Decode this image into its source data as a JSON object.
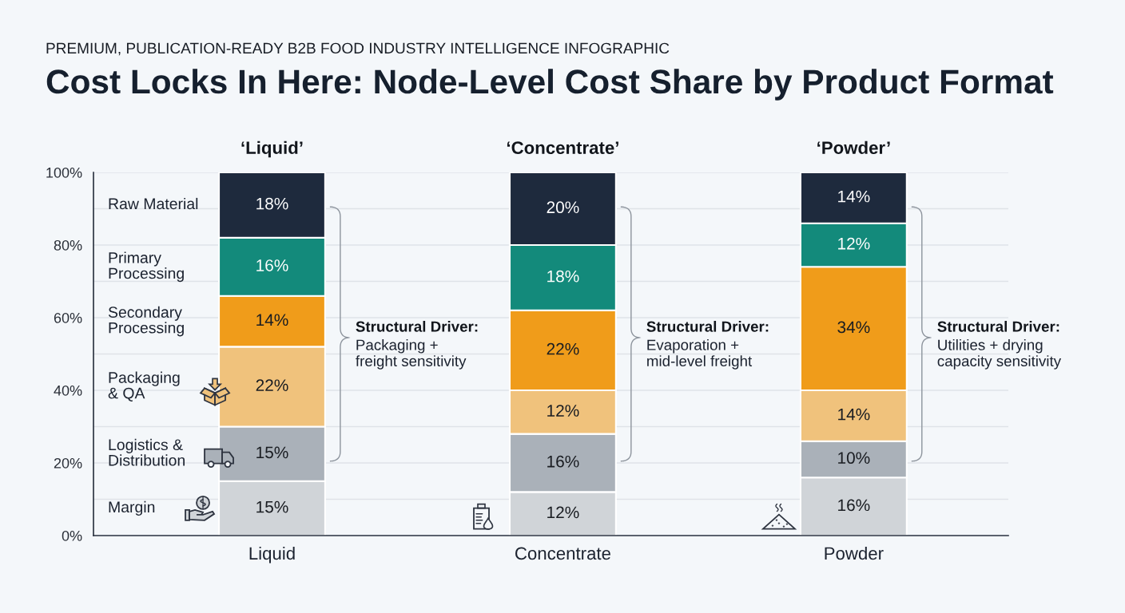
{
  "chart_data": {
    "type": "bar",
    "stacked": true,
    "subtitle": "PREMIUM, PUBLICATION-READY B2B FOOD INDUSTRY INTELLIGENCE INFOGRAPHIC",
    "title": "Cost Locks In Here: Node-Level Cost Share by Product Format",
    "categories": [
      "Liquid",
      "Concentrate",
      "Powder"
    ],
    "series": [
      {
        "name": "Margin",
        "color": "#d0d4d8",
        "values": [
          15,
          12,
          16
        ],
        "value_labels": [
          "15%",
          "12%",
          "16%"
        ]
      },
      {
        "name": "Logistics & Distribution",
        "color": "#aab1b9",
        "values": [
          15,
          16,
          10
        ],
        "value_labels": [
          "15%",
          "16%",
          "10%"
        ]
      },
      {
        "name": "Packaging & QA",
        "color": "#f0c27c",
        "values": [
          22,
          12,
          14
        ],
        "value_labels": [
          "22%",
          "12%",
          "14%"
        ]
      },
      {
        "name": "Secondary Processing",
        "color": "#f09c1a",
        "values": [
          14,
          22,
          34
        ],
        "value_labels": [
          "14%",
          "22%",
          "34%"
        ]
      },
      {
        "name": "Primary Processing",
        "color": "#138a7b",
        "values": [
          16,
          18,
          12
        ],
        "value_labels": [
          "16%",
          "18%",
          "12%"
        ]
      },
      {
        "name": "Raw Material",
        "color": "#1e2a3d",
        "values": [
          18,
          20,
          14
        ],
        "value_labels": [
          "18%",
          "20%",
          "14%"
        ]
      }
    ],
    "ylim": [
      0,
      100
    ],
    "yticks": [
      {
        "value": 0,
        "label": "0%"
      },
      {
        "value": 10,
        "label": null
      },
      {
        "value": 20,
        "label": "20%"
      },
      {
        "value": 30,
        "label": null
      },
      {
        "value": 40,
        "label": "40%"
      },
      {
        "value": 50,
        "label": null
      },
      {
        "value": 60,
        "label": "60%"
      },
      {
        "value": 70,
        "label": null
      },
      {
        "value": 80,
        "label": "80%"
      },
      {
        "value": 90,
        "label": null
      },
      {
        "value": 100,
        "label": "100%"
      }
    ],
    "grid": "y",
    "legend": "left",
    "annotations": [
      "‘Liquid’",
      "‘Concentrate’",
      "‘Powder’",
      "Structural Driver:\nPackaging +\nfreight sensitivity",
      "Structural Driver:\nEvaporation +\nmid-level freight",
      "Structural Driver:\nUtilities + drying\ncapacity sensitivity"
    ]
  }
}
